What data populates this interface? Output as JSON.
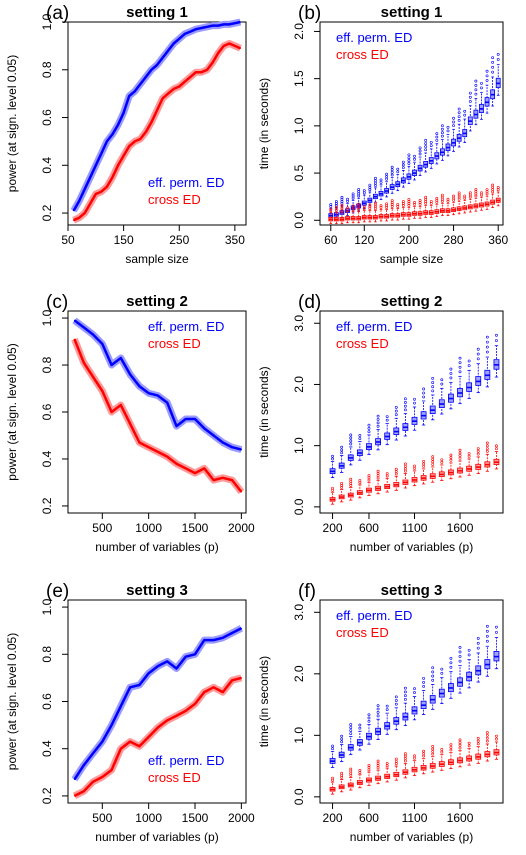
{
  "chart_data": [
    {
      "type": "line",
      "panel_label": "(a)",
      "title": "setting 1",
      "xlabel": "sample size",
      "ylabel": "power (at sign. level 0.05)",
      "xlim": [
        50,
        370
      ],
      "ylim": [
        0.15,
        1.0
      ],
      "xticks": [
        50,
        150,
        250,
        350
      ],
      "yticks": [
        0.2,
        0.4,
        0.6,
        0.8,
        1.0
      ],
      "tick_labels_y": [
        "0.2",
        "0.4",
        "0.6",
        "0.8",
        "1.0"
      ],
      "legend_position": "bottom-right",
      "series": [
        {
          "name": "eff. perm. ED",
          "color": "#0000ff",
          "x": [
            60,
            70,
            80,
            90,
            100,
            110,
            120,
            130,
            140,
            150,
            160,
            170,
            180,
            190,
            200,
            210,
            220,
            230,
            240,
            250,
            260,
            270,
            280,
            290,
            300,
            310,
            320,
            330,
            340,
            350,
            360
          ],
          "y": [
            0.21,
            0.25,
            0.3,
            0.35,
            0.4,
            0.45,
            0.5,
            0.53,
            0.57,
            0.62,
            0.69,
            0.71,
            0.74,
            0.77,
            0.8,
            0.82,
            0.85,
            0.88,
            0.91,
            0.93,
            0.95,
            0.96,
            0.97,
            0.975,
            0.98,
            0.985,
            0.985,
            0.99,
            0.99,
            0.995,
            1.0
          ]
        },
        {
          "name": "cross ED",
          "color": "#ff0000",
          "x": [
            60,
            70,
            80,
            90,
            100,
            110,
            120,
            130,
            140,
            150,
            160,
            170,
            180,
            190,
            200,
            210,
            220,
            230,
            240,
            250,
            260,
            270,
            280,
            290,
            300,
            310,
            320,
            330,
            340,
            350,
            360
          ],
          "y": [
            0.17,
            0.18,
            0.2,
            0.24,
            0.28,
            0.29,
            0.31,
            0.35,
            0.4,
            0.44,
            0.48,
            0.5,
            0.51,
            0.54,
            0.58,
            0.63,
            0.68,
            0.7,
            0.72,
            0.73,
            0.75,
            0.77,
            0.79,
            0.79,
            0.8,
            0.83,
            0.87,
            0.9,
            0.91,
            0.9,
            0.89
          ]
        }
      ]
    },
    {
      "type": "boxplot",
      "panel_label": "(b)",
      "title": "setting 1",
      "xlabel": "sample size",
      "ylabel": "time (in seconds)",
      "ylim": [
        -0.05,
        2.1
      ],
      "xtick_labels": [
        "60",
        "120",
        "200",
        "280",
        "360"
      ],
      "xtick_values": [
        60,
        120,
        200,
        280,
        360
      ],
      "yticks": [
        0.0,
        0.5,
        1.0,
        1.5,
        2.0
      ],
      "tick_labels_y": [
        "0.0",
        "0.5",
        "1.0",
        "1.5",
        "2.0"
      ],
      "legend_position": "top-left",
      "categories": [
        60,
        70,
        80,
        90,
        100,
        110,
        120,
        130,
        140,
        150,
        160,
        170,
        180,
        190,
        200,
        210,
        220,
        230,
        240,
        250,
        260,
        270,
        280,
        290,
        300,
        310,
        320,
        330,
        340,
        350,
        360
      ],
      "series": [
        {
          "name": "eff. perm. ED",
          "color": "#0000ff",
          "median": [
            0.05,
            0.06,
            0.08,
            0.1,
            0.13,
            0.15,
            0.18,
            0.21,
            0.25,
            0.28,
            0.31,
            0.35,
            0.38,
            0.42,
            0.46,
            0.5,
            0.55,
            0.59,
            0.63,
            0.68,
            0.72,
            0.77,
            0.82,
            0.87,
            0.92,
            1.05,
            1.12,
            1.18,
            1.25,
            1.33,
            1.45
          ]
        },
        {
          "name": "cross ED",
          "color": "#ff0000",
          "median": [
            0.01,
            0.01,
            0.01,
            0.02,
            0.02,
            0.02,
            0.03,
            0.03,
            0.03,
            0.04,
            0.04,
            0.05,
            0.05,
            0.06,
            0.06,
            0.07,
            0.07,
            0.08,
            0.08,
            0.09,
            0.1,
            0.1,
            0.11,
            0.12,
            0.13,
            0.14,
            0.15,
            0.16,
            0.17,
            0.19,
            0.21
          ]
        }
      ]
    },
    {
      "type": "line",
      "panel_label": "(c)",
      "title": "setting 2",
      "xlabel": "number of variables (p)",
      "ylabel": "power (at sign. level 0.05)",
      "xlim": [
        130,
        2050
      ],
      "ylim": [
        0.17,
        1.03
      ],
      "xticks": [
        500,
        1000,
        1500,
        2000
      ],
      "yticks": [
        0.2,
        0.4,
        0.6,
        0.8,
        1.0
      ],
      "tick_labels_y": [
        "0.2",
        "0.4",
        "0.6",
        "0.8",
        "1.0"
      ],
      "legend_position": "top-right",
      "series": [
        {
          "name": "eff. perm. ED",
          "color": "#0000ff",
          "x": [
            200,
            300,
            400,
            500,
            600,
            700,
            800,
            900,
            1000,
            1100,
            1200,
            1300,
            1400,
            1500,
            1600,
            1700,
            1800,
            1900,
            2000
          ],
          "y": [
            0.99,
            0.96,
            0.93,
            0.89,
            0.8,
            0.83,
            0.76,
            0.71,
            0.68,
            0.67,
            0.64,
            0.54,
            0.57,
            0.57,
            0.53,
            0.5,
            0.47,
            0.45,
            0.44
          ]
        },
        {
          "name": "cross ED",
          "color": "#ff0000",
          "x": [
            200,
            300,
            400,
            500,
            600,
            700,
            800,
            900,
            1000,
            1100,
            1200,
            1300,
            1400,
            1500,
            1600,
            1700,
            1800,
            1900,
            2000
          ],
          "y": [
            0.91,
            0.81,
            0.75,
            0.69,
            0.6,
            0.63,
            0.55,
            0.47,
            0.45,
            0.43,
            0.41,
            0.38,
            0.36,
            0.34,
            0.36,
            0.31,
            0.32,
            0.31,
            0.26
          ]
        }
      ]
    },
    {
      "type": "boxplot",
      "panel_label": "(d)",
      "title": "setting 2",
      "xlabel": "number of variables (p)",
      "ylabel": "time (in seconds)",
      "ylim": [
        -0.1,
        3.2
      ],
      "xtick_labels": [
        "200",
        "600",
        "1100",
        "1600"
      ],
      "xtick_values": [
        200,
        600,
        1100,
        1600
      ],
      "yticks": [
        0.0,
        1.0,
        2.0,
        3.0
      ],
      "tick_labels_y": [
        "0.0",
        "1.0",
        "2.0",
        "3.0"
      ],
      "legend_position": "top-left",
      "categories": [
        200,
        300,
        400,
        500,
        600,
        700,
        800,
        900,
        1000,
        1100,
        1200,
        1300,
        1400,
        1500,
        1600,
        1700,
        1800,
        1900,
        2000
      ],
      "series": [
        {
          "name": "eff. perm. ED",
          "color": "#0000ff",
          "median": [
            0.58,
            0.67,
            0.8,
            0.88,
            0.98,
            1.06,
            1.15,
            1.23,
            1.3,
            1.4,
            1.49,
            1.58,
            1.68,
            1.77,
            1.86,
            1.95,
            2.05,
            2.15,
            2.32
          ]
        },
        {
          "name": "cross ED",
          "color": "#ff0000",
          "median": [
            0.12,
            0.16,
            0.19,
            0.23,
            0.27,
            0.3,
            0.33,
            0.36,
            0.4,
            0.44,
            0.47,
            0.5,
            0.53,
            0.56,
            0.59,
            0.62,
            0.65,
            0.69,
            0.73
          ]
        }
      ]
    },
    {
      "type": "line",
      "panel_label": "(e)",
      "title": "setting 3",
      "xlabel": "number of variables (p)",
      "ylabel": "power (at sign. level 0.05)",
      "xlim": [
        130,
        2050
      ],
      "ylim": [
        0.17,
        1.03
      ],
      "xticks": [
        500,
        1000,
        1500,
        2000
      ],
      "yticks": [
        0.2,
        0.4,
        0.6,
        0.8,
        1.0
      ],
      "tick_labels_y": [
        "0.2",
        "0.4",
        "0.6",
        "0.8",
        "1.0"
      ],
      "legend_position": "bottom-right",
      "series": [
        {
          "name": "eff. perm. ED",
          "color": "#0000ff",
          "x": [
            200,
            300,
            400,
            500,
            600,
            700,
            800,
            900,
            1000,
            1100,
            1200,
            1300,
            1400,
            1500,
            1600,
            1700,
            1800,
            1900,
            2000
          ],
          "y": [
            0.27,
            0.33,
            0.38,
            0.43,
            0.5,
            0.58,
            0.66,
            0.67,
            0.72,
            0.75,
            0.77,
            0.74,
            0.79,
            0.8,
            0.86,
            0.86,
            0.87,
            0.89,
            0.91
          ]
        },
        {
          "name": "cross ED",
          "color": "#ff0000",
          "x": [
            200,
            300,
            400,
            500,
            600,
            700,
            800,
            900,
            1000,
            1100,
            1200,
            1300,
            1400,
            1500,
            1600,
            1700,
            1800,
            1900,
            2000
          ],
          "y": [
            0.2,
            0.22,
            0.26,
            0.28,
            0.31,
            0.4,
            0.43,
            0.41,
            0.45,
            0.49,
            0.52,
            0.54,
            0.56,
            0.59,
            0.64,
            0.66,
            0.64,
            0.69,
            0.7
          ]
        }
      ]
    },
    {
      "type": "boxplot",
      "panel_label": "(f)",
      "title": "setting 3",
      "xlabel": "number of variables (p)",
      "ylabel": "time (in seconds)",
      "ylim": [
        -0.1,
        3.2
      ],
      "xtick_labels": [
        "200",
        "600",
        "1100",
        "1600"
      ],
      "xtick_values": [
        200,
        600,
        1100,
        1600
      ],
      "yticks": [
        0.0,
        1.0,
        2.0,
        3.0
      ],
      "tick_labels_y": [
        "0.0",
        "1.0",
        "2.0",
        "3.0"
      ],
      "legend_position": "top-left",
      "categories": [
        200,
        300,
        400,
        500,
        600,
        700,
        800,
        900,
        1000,
        1100,
        1200,
        1300,
        1400,
        1500,
        1600,
        1700,
        1800,
        1900,
        2000
      ],
      "series": [
        {
          "name": "eff. perm. ED",
          "color": "#0000ff",
          "median": [
            0.58,
            0.68,
            0.8,
            0.88,
            0.98,
            1.06,
            1.15,
            1.23,
            1.3,
            1.4,
            1.49,
            1.58,
            1.68,
            1.77,
            1.86,
            1.95,
            2.05,
            2.15,
            2.28
          ]
        },
        {
          "name": "cross ED",
          "color": "#ff0000",
          "median": [
            0.12,
            0.16,
            0.19,
            0.23,
            0.27,
            0.3,
            0.33,
            0.36,
            0.4,
            0.44,
            0.47,
            0.5,
            0.53,
            0.56,
            0.59,
            0.62,
            0.65,
            0.69,
            0.72
          ]
        }
      ]
    }
  ]
}
